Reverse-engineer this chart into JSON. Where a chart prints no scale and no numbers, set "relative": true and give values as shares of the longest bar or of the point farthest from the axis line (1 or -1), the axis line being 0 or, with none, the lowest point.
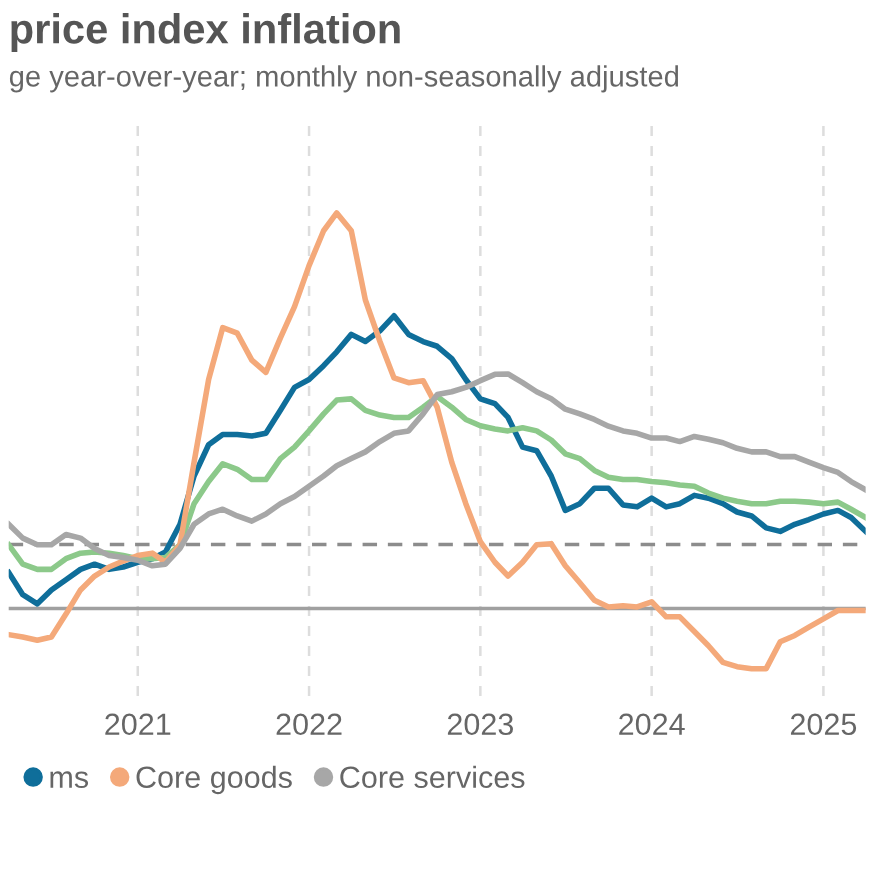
{
  "chart_data": {
    "type": "line",
    "title": "price index inflation",
    "subtitle": "ge year-over-year; monthly non-seasonally adjusted",
    "relative": true,
    "x": [
      "2020-04",
      "2020-05",
      "2020-06",
      "2020-07",
      "2020-08",
      "2020-09",
      "2020-10",
      "2020-11",
      "2020-12",
      "2021-01",
      "2021-02",
      "2021-03",
      "2021-04",
      "2021-05",
      "2021-06",
      "2021-07",
      "2021-08",
      "2021-09",
      "2021-10",
      "2021-11",
      "2021-12",
      "2022-01",
      "2022-02",
      "2022-03",
      "2022-04",
      "2022-05",
      "2022-06",
      "2022-07",
      "2022-08",
      "2022-09",
      "2022-10",
      "2022-11",
      "2022-12",
      "2023-01",
      "2023-02",
      "2023-03",
      "2023-04",
      "2023-05",
      "2023-06",
      "2023-07",
      "2023-08",
      "2023-09",
      "2023-10",
      "2023-11",
      "2023-12",
      "2024-01",
      "2024-02",
      "2024-03",
      "2024-04",
      "2024-05",
      "2024-06",
      "2024-07",
      "2024-08",
      "2024-09",
      "2024-10",
      "2024-11",
      "2024-12",
      "2025-01",
      "2025-02",
      "2025-03",
      "2025-04"
    ],
    "xlim": [
      "2020-04",
      "2025-04"
    ],
    "xticks": [
      {
        "value": "2021-01",
        "label": "2021"
      },
      {
        "value": "2022-01",
        "label": "2022"
      },
      {
        "value": "2023-01",
        "label": "2023"
      },
      {
        "value": "2024-01",
        "label": "2024"
      },
      {
        "value": "2025-01",
        "label": "2025"
      }
    ],
    "grid": "x",
    "legend": "bottom",
    "marker": "none",
    "line_style": "solid",
    "ref_lines": [
      {
        "axis": "y",
        "value": 0,
        "color": "#a0a0a0",
        "line_style": "solid"
      },
      {
        "axis": "y",
        "value": 0.162,
        "color": "#8c8c8c",
        "line_style": "dashed"
      }
    ],
    "series": [
      {
        "name": "ms",
        "color": "#0f6e9a",
        "values": [
          0.091,
          0.035,
          0.012,
          0.047,
          0.073,
          0.099,
          0.112,
          0.099,
          0.105,
          0.117,
          0.126,
          0.143,
          0.213,
          0.335,
          0.414,
          0.44,
          0.44,
          0.436,
          0.443,
          0.501,
          0.559,
          0.579,
          0.614,
          0.649,
          0.693,
          0.675,
          0.702,
          0.74,
          0.693,
          0.675,
          0.663,
          0.632,
          0.579,
          0.53,
          0.518,
          0.483,
          0.408,
          0.399,
          0.335,
          0.248,
          0.265,
          0.304,
          0.304,
          0.262,
          0.257,
          0.279,
          0.257,
          0.265,
          0.286,
          0.279,
          0.265,
          0.244,
          0.234,
          0.204,
          0.195,
          0.213,
          0.225,
          0.239,
          0.248,
          0.23,
          0.195
        ]
      },
      {
        "color": "#8cc98a",
        "values": [
          0.161,
          0.112,
          0.099,
          0.099,
          0.126,
          0.14,
          0.143,
          0.14,
          0.134,
          0.126,
          0.126,
          0.129,
          0.161,
          0.265,
          0.321,
          0.366,
          0.352,
          0.326,
          0.326,
          0.379,
          0.408,
          0.449,
          0.492,
          0.527,
          0.53,
          0.501,
          0.489,
          0.483,
          0.483,
          0.509,
          0.536,
          0.509,
          0.478,
          0.462,
          0.454,
          0.449,
          0.457,
          0.449,
          0.426,
          0.391,
          0.379,
          0.349,
          0.332,
          0.326,
          0.326,
          0.321,
          0.318,
          0.312,
          0.309,
          0.292,
          0.279,
          0.271,
          0.265,
          0.265,
          0.271,
          0.271,
          0.269,
          0.265,
          0.269,
          0.251,
          0.23
        ]
      },
      {
        "name": "Core goods",
        "color": "#f4a97a",
        "values": [
          -0.066,
          -0.072,
          -0.08,
          -0.072,
          -0.014,
          0.047,
          0.082,
          0.105,
          0.12,
          0.134,
          0.14,
          0.117,
          0.161,
          0.37,
          0.579,
          0.71,
          0.696,
          0.628,
          0.597,
          0.684,
          0.763,
          0.867,
          0.955,
          1,
          0.955,
          0.78,
          0.675,
          0.583,
          0.571,
          0.576,
          0.509,
          0.37,
          0.265,
          0.169,
          0.117,
          0.082,
          0.117,
          0.161,
          0.164,
          0.108,
          0.065,
          0.021,
          0.004,
          0.007,
          0.004,
          0.017,
          -0.021,
          -0.021,
          -0.058,
          -0.094,
          -0.136,
          -0.147,
          -0.152,
          -0.152,
          -0.084,
          -0.068,
          -0.047,
          -0.026,
          -0.005,
          -0.005,
          -0.005
        ]
      },
      {
        "name": "Core services",
        "color": "#a7a7a7",
        "values": [
          0.213,
          0.178,
          0.161,
          0.161,
          0.187,
          0.178,
          0.152,
          0.134,
          0.129,
          0.122,
          0.108,
          0.112,
          0.152,
          0.213,
          0.239,
          0.251,
          0.234,
          0.221,
          0.239,
          0.265,
          0.283,
          0.309,
          0.335,
          0.361,
          0.379,
          0.396,
          0.422,
          0.443,
          0.449,
          0.492,
          0.541,
          0.548,
          0.559,
          0.576,
          0.592,
          0.593,
          0.571,
          0.548,
          0.53,
          0.504,
          0.492,
          0.478,
          0.461,
          0.449,
          0.443,
          0.431,
          0.431,
          0.422,
          0.435,
          0.428,
          0.419,
          0.405,
          0.396,
          0.396,
          0.384,
          0.384,
          0.37,
          0.356,
          0.344,
          0.321,
          0.3
        ]
      }
    ]
  }
}
